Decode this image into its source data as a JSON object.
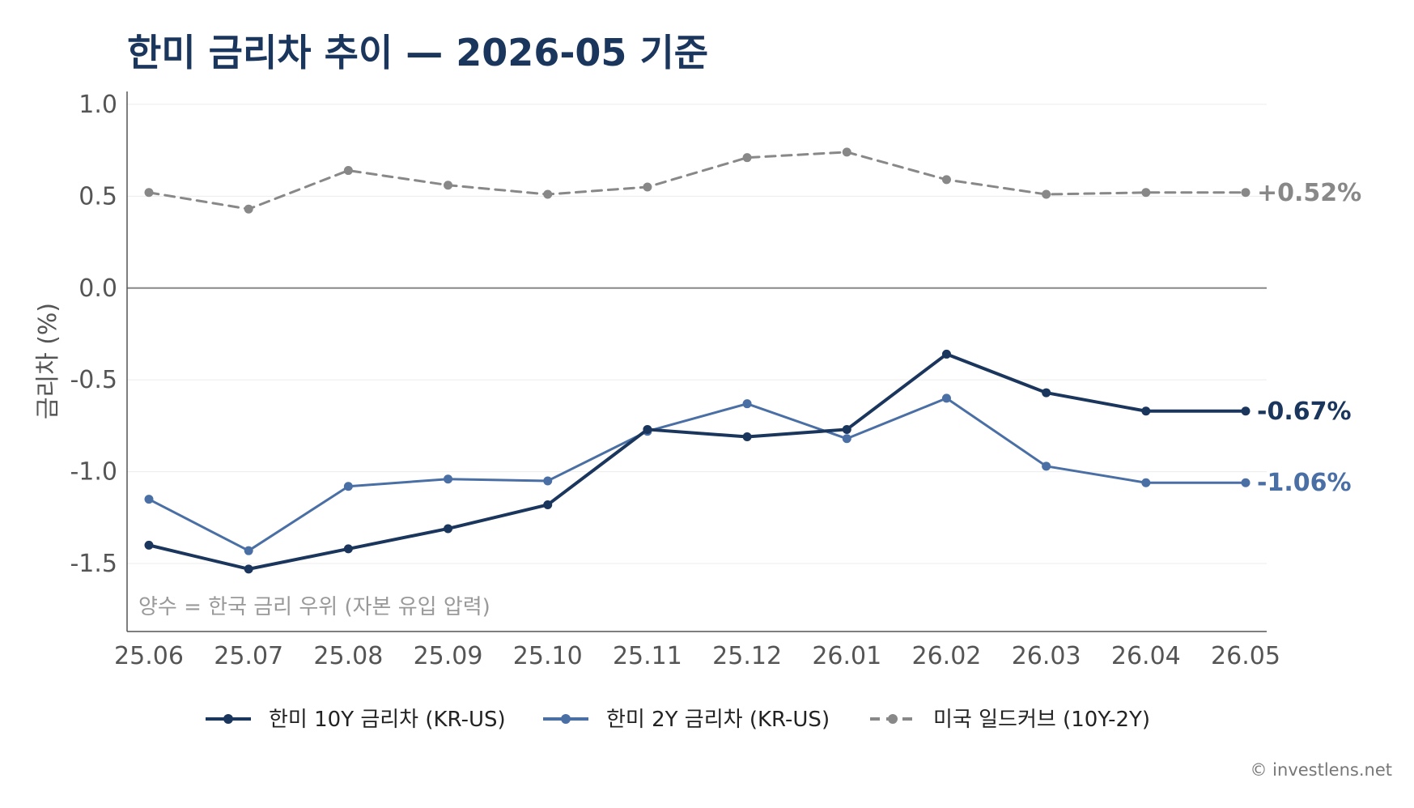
{
  "chart_data": {
    "type": "line",
    "title": "한미 금리차 추이 — 2026-05 기준",
    "xlabel": "",
    "ylabel": "금리차 (%)",
    "ylim": [
      -1.87,
      1.07
    ],
    "yticks": [
      1.0,
      0.5,
      0.0,
      -0.5,
      -1.0,
      -1.5
    ],
    "ytick_labels": [
      "1.0",
      "0.5",
      "0.0",
      "-0.5",
      "-1.0",
      "-1.5"
    ],
    "categories": [
      "25.06",
      "25.07",
      "25.08",
      "25.09",
      "25.10",
      "25.11",
      "25.12",
      "26.01",
      "26.02",
      "26.03",
      "26.04",
      "26.05"
    ],
    "grid": true,
    "zero_line": true,
    "legend_position": "bottom-center",
    "series": [
      {
        "name": "한미 10Y 금리차 (KR-US)",
        "color": "#1b365d",
        "style": "solid",
        "values": [
          -1.4,
          -1.53,
          -1.42,
          -1.31,
          -1.18,
          -0.77,
          -0.81,
          -0.77,
          -0.36,
          -0.57,
          -0.67,
          -0.67
        ],
        "end_label": "-0.67%"
      },
      {
        "name": "한미 2Y 금리차 (KR-US)",
        "color": "#4a6fa5",
        "style": "solid",
        "values": [
          -1.15,
          -1.43,
          -1.08,
          -1.04,
          -1.05,
          -0.78,
          -0.63,
          -0.82,
          -0.6,
          -0.97,
          -1.06,
          -1.06
        ],
        "end_label": "-1.06%"
      },
      {
        "name": "미국 일드커브 (10Y-2Y)",
        "color": "#888888",
        "style": "dashed",
        "values": [
          0.52,
          0.43,
          0.64,
          0.56,
          0.51,
          0.55,
          0.71,
          0.74,
          0.59,
          0.51,
          0.52,
          0.52
        ],
        "end_label": "+0.52%"
      }
    ],
    "annotation": "양수 = 한국 금리 우위 (자본 유입 압력)"
  },
  "credit": "© investlens.net"
}
